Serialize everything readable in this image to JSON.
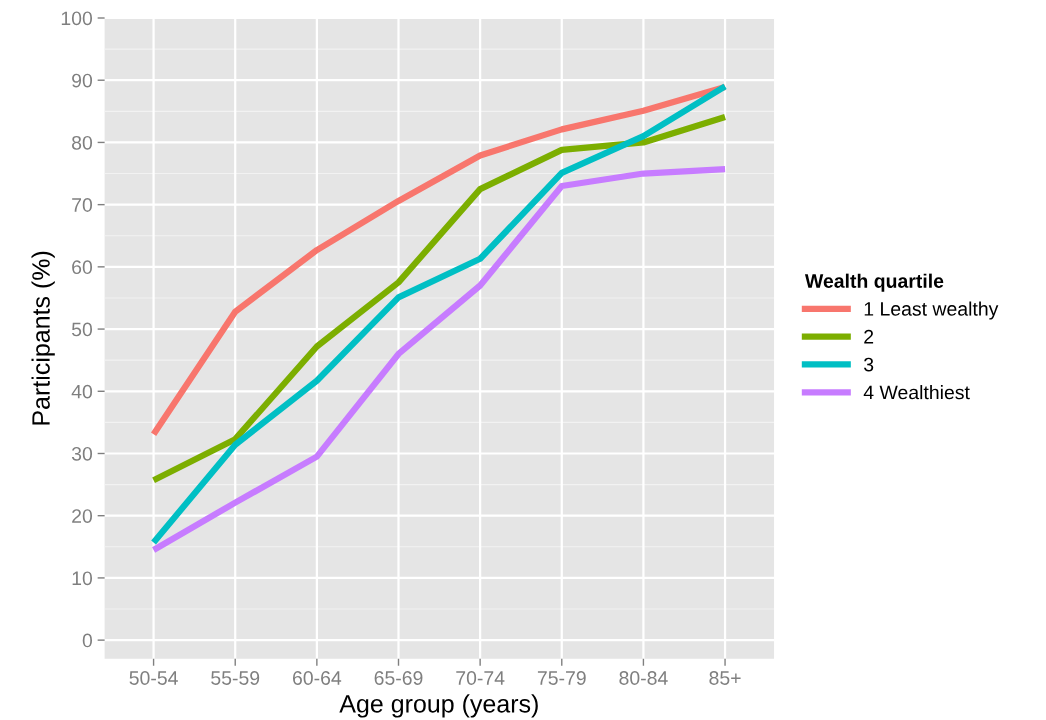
{
  "chart_data": {
    "type": "line",
    "xlabel": "Age group (years)",
    "ylabel": "Participants (%)",
    "legend_title": "Wealth quartile",
    "legend": "right",
    "categories": [
      "50-54",
      "55-59",
      "60-64",
      "65-69",
      "70-74",
      "75-79",
      "80-84",
      "85+"
    ],
    "series": [
      {
        "name": "1 Least wealthy",
        "color": "#f8766d",
        "values": [
          33.1,
          52.8,
          62.7,
          70.6,
          77.9,
          82.1,
          85.1,
          88.9
        ]
      },
      {
        "name": "2",
        "color": "#7cae00",
        "values": [
          25.7,
          32.3,
          47.2,
          57.5,
          72.5,
          78.8,
          80.0,
          84.1
        ]
      },
      {
        "name": "3",
        "color": "#00bfc4",
        "values": [
          15.7,
          31.4,
          41.7,
          55.1,
          61.3,
          75.1,
          81.0,
          89.0
        ]
      },
      {
        "name": "4 Wealthiest",
        "color": "#c77cff",
        "values": [
          14.5,
          22.1,
          29.5,
          46.0,
          57.0,
          73.0,
          75.0,
          75.7
        ]
      }
    ],
    "ylim": [
      -3,
      100
    ],
    "yticks": [
      0,
      10,
      20,
      30,
      40,
      50,
      60,
      70,
      80,
      90,
      100
    ],
    "grid": true,
    "line_style": "solid",
    "marker": "none"
  }
}
